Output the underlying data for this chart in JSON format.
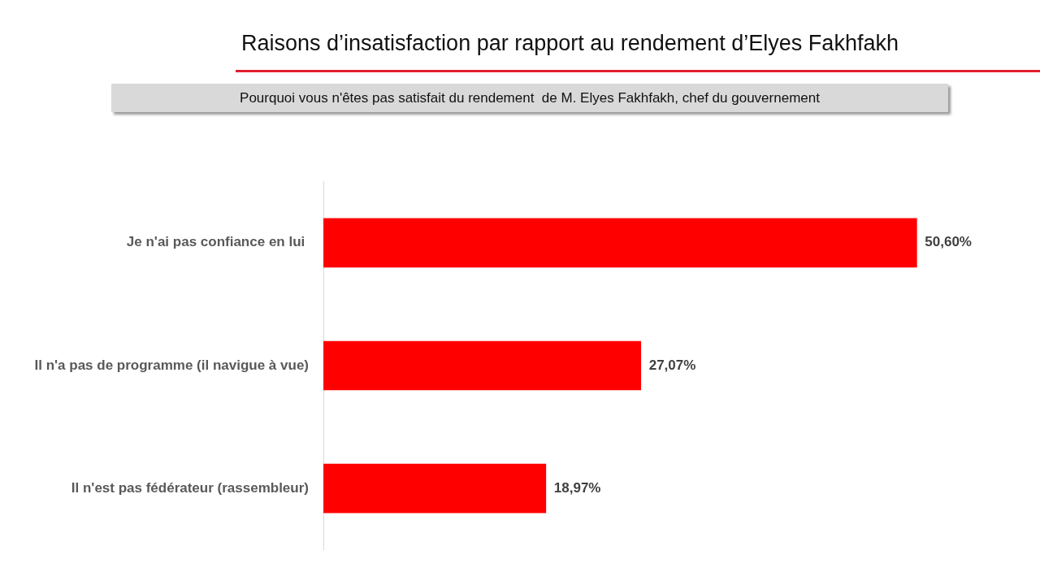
{
  "chart_data": {
    "type": "bar",
    "orientation": "horizontal",
    "title": "Raisons d’insatisfaction par rapport au rendement d’Elyes Fakhfakh",
    "subtitle": "Pourquoi vous n'êtes pas satisfait du rendement  de M. Elyes Fakhfakh, chef du gouvernement",
    "categories": [
      "Je n'ai pas confiance en lui ",
      "Il n'a pas de programme (il navigue à vue)",
      "Il n'est pas fédérateur (rassembleur)"
    ],
    "values": [
      50.6,
      27.07,
      18.97
    ],
    "value_labels": [
      "50,60%",
      "27,07%",
      "18,97%"
    ],
    "color": "#ff0000",
    "tick_labels": "y",
    "grid": false,
    "legend": false
  }
}
